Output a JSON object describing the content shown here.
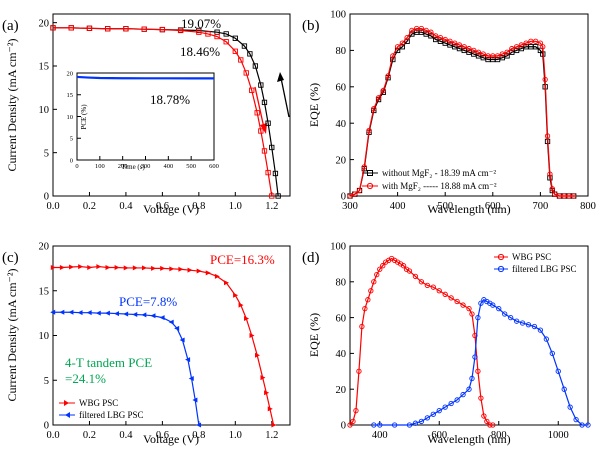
{
  "colors": {
    "black": "#000000",
    "red": "#ff0000",
    "blue": "#0033ff",
    "green": "#00a651"
  },
  "chart_data": [
    {
      "type": "line",
      "panel_label": "(a)",
      "xlabel": "Voltage (V)",
      "ylabel": "Current Density (mA cm⁻²)",
      "xlim": [
        0.0,
        1.3
      ],
      "ylim": [
        0,
        21
      ],
      "xticks": [
        "0.0",
        "0.2",
        "0.4",
        "0.6",
        "0.8",
        "1.0",
        "1.2"
      ],
      "yticks": [
        "0",
        "5",
        "10",
        "15",
        "20"
      ],
      "series": [
        {
          "name": "",
          "color": "#000000",
          "x": [
            0,
            0.1,
            0.2,
            0.3,
            0.4,
            0.5,
            0.6,
            0.7,
            0.8,
            0.9,
            0.95,
            1.0,
            1.05,
            1.08,
            1.11,
            1.14,
            1.16,
            1.18,
            1.2,
            1.22,
            1.235
          ],
          "y": [
            19.4,
            19.4,
            19.35,
            19.3,
            19.3,
            19.25,
            19.2,
            19.15,
            19.1,
            18.9,
            18.7,
            18.2,
            17.3,
            16.4,
            15.0,
            12.8,
            10.8,
            8.4,
            5.6,
            2.6,
            0
          ]
        },
        {
          "name": "",
          "color": "#ff0000",
          "x": [
            0,
            0.1,
            0.2,
            0.3,
            0.4,
            0.5,
            0.6,
            0.7,
            0.8,
            0.85,
            0.9,
            0.95,
            1.0,
            1.03,
            1.06,
            1.09,
            1.12,
            1.14,
            1.16,
            1.18,
            1.2
          ],
          "y": [
            19.4,
            19.4,
            19.35,
            19.3,
            19.3,
            19.25,
            19.2,
            19.1,
            18.9,
            18.7,
            18.4,
            17.8,
            16.7,
            15.7,
            14.2,
            12.2,
            9.6,
            7.5,
            5.2,
            2.7,
            0
          ]
        }
      ],
      "annotations": [
        {
          "text": "19.07%",
          "color": "#000000"
        },
        {
          "text": "18.46%",
          "color": "#000000"
        }
      ],
      "inset": {
        "type": "line",
        "xlabel": "Time (s)",
        "ylabel": "PCE (%)",
        "xlim": [
          0,
          600
        ],
        "ylim": [
          0,
          20
        ],
        "xticks": [
          "0",
          "100",
          "200",
          "300",
          "400",
          "500",
          "600"
        ],
        "yticks": [
          "0",
          "5",
          "10",
          "15",
          "20"
        ],
        "series": [
          {
            "name": "",
            "color": "#0033ff",
            "x": [
              0,
              50,
              100,
              200,
              300,
              400,
              500,
              600
            ],
            "y": [
              19.1,
              18.95,
              18.85,
              18.8,
              18.78,
              18.78,
              18.77,
              18.77
            ]
          }
        ],
        "annotation": "18.78%"
      }
    },
    {
      "type": "line",
      "panel_label": "(b)",
      "xlabel": "Wavelength (nm)",
      "ylabel": "EQE (%)",
      "xlim": [
        300,
        800
      ],
      "ylim": [
        0,
        100
      ],
      "xticks": [
        "300",
        "400",
        "500",
        "600",
        "700",
        "800"
      ],
      "yticks": [
        "0",
        "20",
        "40",
        "60",
        "80",
        "100"
      ],
      "series": [
        {
          "name": "without MgF₂ - 18.39 mA cm⁻²",
          "color": "#000000",
          "x": [
            300,
            310,
            320,
            330,
            340,
            350,
            360,
            370,
            380,
            390,
            400,
            410,
            420,
            430,
            440,
            450,
            460,
            470,
            480,
            490,
            500,
            510,
            520,
            530,
            540,
            550,
            560,
            570,
            580,
            590,
            600,
            610,
            620,
            630,
            640,
            650,
            660,
            670,
            680,
            690,
            700,
            705,
            710,
            715,
            720,
            725,
            730,
            740,
            750,
            760,
            770
          ],
          "y": [
            0,
            1,
            3,
            15,
            35,
            47,
            53,
            57,
            65,
            75,
            80,
            82,
            85,
            89,
            90,
            90,
            89,
            88,
            86,
            85,
            84,
            83,
            82,
            81,
            80,
            79,
            78,
            77,
            76,
            75,
            75,
            75,
            76,
            77,
            79,
            80,
            81,
            82,
            82,
            82,
            80,
            78,
            60,
            30,
            10,
            3,
            1,
            0,
            0,
            0,
            0
          ]
        },
        {
          "name": "with MgF₂ ----- 18.88 mA cm⁻²",
          "color": "#ff0000",
          "x": [
            300,
            310,
            320,
            330,
            340,
            350,
            360,
            370,
            380,
            390,
            400,
            410,
            420,
            430,
            440,
            450,
            460,
            470,
            480,
            490,
            500,
            510,
            520,
            530,
            540,
            550,
            560,
            570,
            580,
            590,
            600,
            610,
            620,
            630,
            640,
            650,
            660,
            670,
            680,
            690,
            700,
            705,
            710,
            715,
            720,
            725,
            730,
            740,
            750,
            760,
            770
          ],
          "y": [
            0,
            1,
            3,
            16,
            36,
            48,
            54,
            58,
            66,
            77,
            82,
            84,
            87,
            91,
            92,
            92,
            91,
            90,
            88,
            87,
            86,
            85,
            84,
            83,
            82,
            81,
            80,
            79,
            78,
            77,
            77,
            77,
            78,
            79,
            81,
            82,
            83,
            84,
            85,
            85,
            84,
            82,
            64,
            33,
            12,
            4,
            1,
            0,
            0,
            0,
            0
          ]
        }
      ],
      "legend_position": "bottom-left"
    },
    {
      "type": "line",
      "panel_label": "(c)",
      "xlabel": "Voltage (V)",
      "ylabel": "Current Density (mA cm⁻²)",
      "xlim": [
        0.0,
        1.3
      ],
      "ylim": [
        0,
        20
      ],
      "xticks": [
        "0.0",
        "0.2",
        "0.4",
        "0.6",
        "0.8",
        "1.0",
        "1.2"
      ],
      "yticks": [
        "0",
        "5",
        "10",
        "15",
        "20"
      ],
      "series": [
        {
          "name": "WBG PSC",
          "color": "#ff0000",
          "x": [
            0,
            0.05,
            0.1,
            0.15,
            0.2,
            0.25,
            0.3,
            0.35,
            0.4,
            0.45,
            0.5,
            0.55,
            0.6,
            0.65,
            0.7,
            0.75,
            0.8,
            0.85,
            0.9,
            0.95,
            1.0,
            1.03,
            1.06,
            1.09,
            1.12,
            1.15,
            1.17,
            1.19,
            1.21
          ],
          "y": [
            17.6,
            17.6,
            17.65,
            17.7,
            17.6,
            17.7,
            17.6,
            17.6,
            17.55,
            17.55,
            17.55,
            17.5,
            17.5,
            17.45,
            17.4,
            17.3,
            17.2,
            17.0,
            16.6,
            15.9,
            14.5,
            13.4,
            11.9,
            10.0,
            7.8,
            5.3,
            3.6,
            1.8,
            0
          ]
        },
        {
          "name": "filtered LBG PSC",
          "color": "#0033ff",
          "x": [
            0,
            0.05,
            0.1,
            0.15,
            0.2,
            0.25,
            0.3,
            0.35,
            0.4,
            0.45,
            0.5,
            0.55,
            0.6,
            0.65,
            0.68,
            0.71,
            0.74,
            0.76,
            0.78,
            0.8
          ],
          "y": [
            12.6,
            12.6,
            12.6,
            12.55,
            12.55,
            12.5,
            12.5,
            12.45,
            12.4,
            12.35,
            12.3,
            12.2,
            12.0,
            11.5,
            10.8,
            9.5,
            7.3,
            5.2,
            2.8,
            0
          ]
        }
      ],
      "annotations": [
        {
          "text": "PCE=16.3%",
          "color": "#ff0000"
        },
        {
          "text": "PCE=7.8%",
          "color": "#0033ff"
        },
        {
          "text": "4-T tandem PCE",
          "color": "#00a651"
        },
        {
          "text": "=24.1%",
          "color": "#00a651"
        }
      ],
      "legend_position": "bottom-left"
    },
    {
      "type": "line",
      "panel_label": "(d)",
      "xlabel": "Wavelength (nm)",
      "ylabel": "EQE (%)",
      "xlim": [
        300,
        1100
      ],
      "ylim": [
        0,
        100
      ],
      "xticks": [
        "400",
        "600",
        "800",
        "1000"
      ],
      "yticks": [
        "0",
        "20",
        "40",
        "60",
        "80",
        "100"
      ],
      "series": [
        {
          "name": "WBG PSC",
          "color": "#ff0000",
          "x": [
            300,
            310,
            320,
            330,
            340,
            350,
            360,
            370,
            380,
            390,
            400,
            410,
            420,
            430,
            440,
            450,
            460,
            470,
            480,
            490,
            500,
            520,
            540,
            560,
            580,
            600,
            620,
            640,
            660,
            680,
            700,
            710,
            720,
            730,
            740,
            750,
            760,
            770,
            780
          ],
          "y": [
            0,
            2,
            8,
            30,
            55,
            65,
            70,
            75,
            80,
            84,
            87,
            89,
            91,
            92,
            93,
            92,
            91,
            90,
            89,
            87,
            86,
            83,
            80,
            78,
            77,
            75,
            73,
            71,
            69,
            67,
            65,
            62,
            50,
            30,
            15,
            5,
            2,
            0,
            0
          ]
        },
        {
          "name": "filtered LBG PSC",
          "color": "#0033ff",
          "x": [
            380,
            400,
            450,
            500,
            520,
            540,
            560,
            580,
            600,
            620,
            640,
            660,
            680,
            700,
            710,
            720,
            730,
            740,
            750,
            760,
            770,
            780,
            800,
            820,
            840,
            860,
            880,
            900,
            920,
            940,
            960,
            980,
            1000,
            1020,
            1040,
            1060,
            1080,
            1100
          ],
          "y": [
            0,
            0,
            0,
            0,
            1,
            2,
            4,
            6,
            8,
            10,
            12,
            14,
            17,
            20,
            26,
            38,
            60,
            68,
            70,
            69,
            68,
            67,
            65,
            62,
            60,
            58,
            57,
            56,
            55,
            53,
            48,
            40,
            30,
            20,
            10,
            3,
            0,
            0
          ]
        }
      ],
      "legend_position": "top-left"
    }
  ]
}
